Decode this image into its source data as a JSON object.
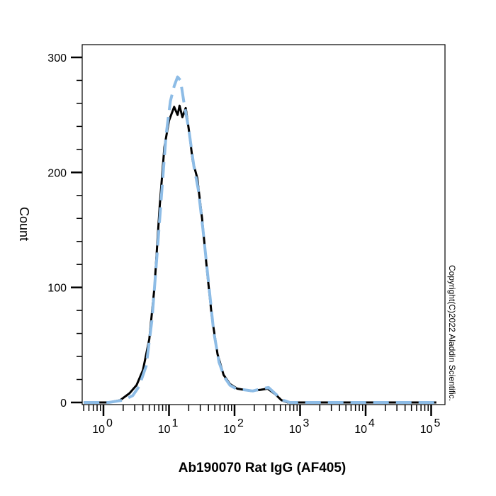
{
  "chart_data": {
    "type": "line",
    "title": "",
    "xlabel": "Ab190070 Rat IgG (AF405)",
    "ylabel": "Count",
    "x_scale": "log",
    "xlim": [
      0.5,
      120000
    ],
    "ylim": [
      0,
      300
    ],
    "x_ticks": [
      {
        "base": "10",
        "exp": "0"
      },
      {
        "base": "10",
        "exp": "1"
      },
      {
        "base": "10",
        "exp": "2"
      },
      {
        "base": "10",
        "exp": "3"
      },
      {
        "base": "10",
        "exp": "4"
      },
      {
        "base": "10",
        "exp": "5"
      }
    ],
    "y_ticks": [
      "0",
      "100",
      "200",
      "300"
    ],
    "grid": false,
    "series": [
      {
        "color": "#000000",
        "style": "solid",
        "points": [
          [
            0.5,
            0
          ],
          [
            1.2,
            0
          ],
          [
            1.8,
            2
          ],
          [
            2.5,
            8
          ],
          [
            3.2,
            15
          ],
          [
            4.0,
            28
          ],
          [
            5.0,
            55
          ],
          [
            6.0,
            100
          ],
          [
            7.2,
            170
          ],
          [
            8.5,
            222
          ],
          [
            10.0,
            245
          ],
          [
            12.0,
            257
          ],
          [
            13.5,
            250
          ],
          [
            14.5,
            258
          ],
          [
            16.0,
            248
          ],
          [
            18.0,
            256
          ],
          [
            20.0,
            238
          ],
          [
            23.0,
            210
          ],
          [
            27.0,
            195
          ],
          [
            32.0,
            160
          ],
          [
            38.0,
            115
          ],
          [
            45.0,
            75
          ],
          [
            55.0,
            42
          ],
          [
            68.0,
            24
          ],
          [
            85.0,
            16
          ],
          [
            110.0,
            12
          ],
          [
            140.0,
            11
          ],
          [
            180.0,
            10
          ],
          [
            250.0,
            11
          ],
          [
            320.0,
            12
          ],
          [
            420.0,
            7
          ],
          [
            520.0,
            2
          ],
          [
            650.0,
            0
          ],
          [
            1000.0,
            0
          ],
          [
            120000.0,
            0
          ]
        ]
      },
      {
        "color": "#8dbce6",
        "style": "dashed",
        "points": [
          [
            0.5,
            0
          ],
          [
            1.2,
            0
          ],
          [
            2.0,
            2
          ],
          [
            2.8,
            6
          ],
          [
            3.5,
            14
          ],
          [
            4.5,
            32
          ],
          [
            5.5,
            72
          ],
          [
            6.5,
            125
          ],
          [
            7.8,
            185
          ],
          [
            9.0,
            232
          ],
          [
            10.5,
            262
          ],
          [
            12.0,
            275
          ],
          [
            13.5,
            283
          ],
          [
            15.0,
            280
          ],
          [
            17.0,
            260
          ],
          [
            20.0,
            238
          ],
          [
            24.0,
            205
          ],
          [
            28.0,
            185
          ],
          [
            33.0,
            150
          ],
          [
            40.0,
            105
          ],
          [
            48.0,
            62
          ],
          [
            58.0,
            35
          ],
          [
            70.0,
            22
          ],
          [
            85.0,
            15
          ],
          [
            105.0,
            12
          ],
          [
            140.0,
            11
          ],
          [
            190.0,
            10
          ],
          [
            260.0,
            12
          ],
          [
            330.0,
            13
          ],
          [
            430.0,
            7
          ],
          [
            550.0,
            2
          ],
          [
            700.0,
            0
          ],
          [
            1000.0,
            0
          ],
          [
            120000.0,
            0
          ]
        ]
      }
    ]
  },
  "copyright": "Copyright(C)2022 Aladdin Scientific."
}
